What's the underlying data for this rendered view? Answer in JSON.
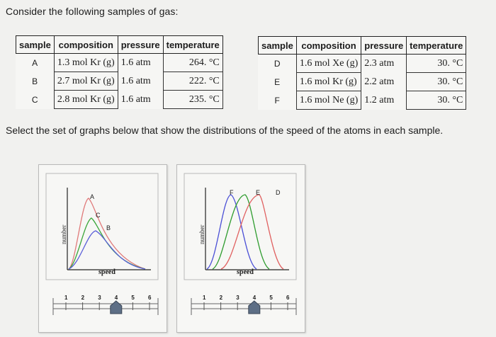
{
  "prompt": "Consider the following samples of gas:",
  "instruction": "Select the set of graphs below that show the distributions of the speed of the atoms in each sample.",
  "table_left": {
    "headers": [
      "sample",
      "composition",
      "pressure",
      "temperature"
    ],
    "rows": [
      {
        "sample": "A",
        "composition": "1.3 mol Kr (g)",
        "pressure": "1.6 atm",
        "temperature": "264. °C"
      },
      {
        "sample": "B",
        "composition": "2.7 mol Kr (g)",
        "pressure": "1.6 atm",
        "temperature": "222. °C"
      },
      {
        "sample": "C",
        "composition": "2.8 mol Kr (g)",
        "pressure": "1.6 atm",
        "temperature": "235. °C"
      }
    ]
  },
  "table_right": {
    "headers": [
      "sample",
      "composition",
      "pressure",
      "temperature"
    ],
    "rows": [
      {
        "sample": "D",
        "composition": "1.6 mol Xe (g)",
        "pressure": "2.3 atm",
        "temperature": "30. °C"
      },
      {
        "sample": "E",
        "composition": "1.6 mol Kr (g)",
        "pressure": "2.2 atm",
        "temperature": "30. °C"
      },
      {
        "sample": "F",
        "composition": "1.6 mol Ne (g)",
        "pressure": "1.2 atm",
        "temperature": "30. °C"
      }
    ]
  },
  "graphs": [
    {
      "ylabel": "number",
      "xlabel": "speed",
      "curve_labels": [
        "A",
        "C",
        "B"
      ],
      "colors": {
        "A": "#e07a7a",
        "B": "#5b5fd8",
        "C": "#3aa63a"
      },
      "slider": {
        "ticks": [
          "1",
          "2",
          "3",
          "4",
          "5",
          "6"
        ],
        "value": 4
      }
    },
    {
      "ylabel": "number",
      "xlabel": "speed",
      "curve_labels": [
        "F",
        "E",
        "D"
      ],
      "colors": {
        "D": "#e06060",
        "E": "#2e9c2e",
        "F": "#4a4fd6"
      },
      "slider": {
        "ticks": [
          "1",
          "2",
          "3",
          "4",
          "5",
          "6"
        ],
        "value": 4
      }
    }
  ],
  "colors": {
    "slider_thumb": "#5e6f86",
    "panel_border": "#b9b9b9"
  }
}
